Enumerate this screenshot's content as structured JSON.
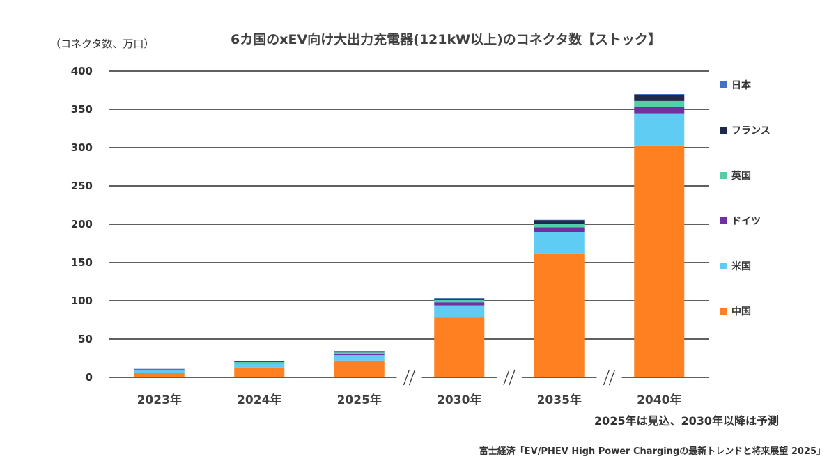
{
  "chart_data": {
    "type": "bar",
    "stacked": true,
    "title": "6カ国のxEV向け大出力充電器(121kW以上)のコネクタ数【ストック】",
    "unit_label": "（コネクタ数、万口）",
    "categories": [
      "2023年",
      "2024年",
      "2025年",
      "2030年",
      "2035年",
      "2040年"
    ],
    "ylim": [
      0,
      400
    ],
    "yticks": [
      0,
      50,
      100,
      150,
      200,
      250,
      300,
      350,
      400
    ],
    "grid": true,
    "legend_position": "right",
    "axis_breaks_between": [
      [
        2,
        3
      ],
      [
        3,
        4
      ],
      [
        4,
        5
      ]
    ],
    "series": [
      {
        "name": "中国",
        "color": "#FF8021",
        "values": [
          6,
          13,
          22,
          79,
          161,
          303
        ]
      },
      {
        "name": "米国",
        "color": "#5FCCF3",
        "values": [
          3,
          5,
          7,
          15,
          29,
          41
        ]
      },
      {
        "name": "ドイツ",
        "color": "#7030A0",
        "values": [
          1,
          1,
          2,
          4,
          6,
          9
        ]
      },
      {
        "name": "英国",
        "color": "#51D0A8",
        "values": [
          0.5,
          1,
          1.5,
          3,
          4,
          8
        ]
      },
      {
        "name": "フランス",
        "color": "#1F2A4A",
        "values": [
          0.5,
          0.8,
          1.5,
          2,
          5,
          8
        ]
      },
      {
        "name": "日本",
        "color": "#4472C4",
        "values": [
          0.2,
          0.3,
          0.4,
          0.6,
          0.7,
          1
        ]
      }
    ],
    "legend_order": [
      "日本",
      "フランス",
      "英国",
      "ドイツ",
      "米国",
      "中国"
    ],
    "note": "2025年は見込、2030年以降は予測",
    "source": "富士経済「EV/PHEV High Power Chargingの最新トレンドと将来展望 2025」"
  }
}
